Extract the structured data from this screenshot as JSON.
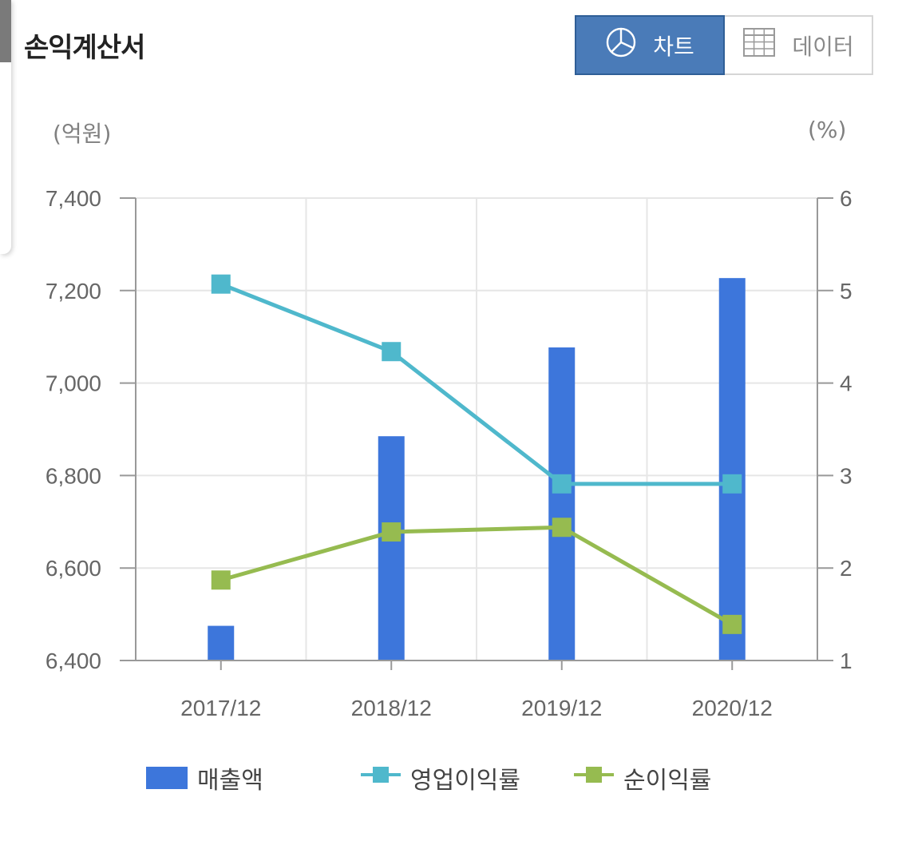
{
  "header": {
    "title": "손익계산서"
  },
  "toggle": {
    "chart_label": "차트",
    "data_label": "데이터",
    "chart_icon": "pie-chart-icon",
    "data_icon": "table-grid-icon",
    "active": "chart",
    "active_color": "#4a7bb8"
  },
  "units": {
    "left": "(억원)",
    "right": "(%)"
  },
  "colors": {
    "bar": "#3d76db",
    "operating_margin": "#4fb8cc",
    "net_margin": "#96bb50",
    "grid": "#e6e6e6",
    "axis": "#999999",
    "tick_text": "#666666"
  },
  "chart_data": {
    "type": "bar",
    "categories": [
      "2017/12",
      "2018/12",
      "2019/12",
      "2020/12"
    ],
    "series": [
      {
        "name": "매출액",
        "type": "bar",
        "axis": "left",
        "values": [
          6475,
          6885,
          7077,
          7227
        ]
      },
      {
        "name": "영업이익률",
        "type": "line",
        "axis": "right",
        "values": [
          5.07,
          4.34,
          2.91,
          2.91
        ]
      },
      {
        "name": "순이익률",
        "type": "line",
        "axis": "right",
        "values": [
          1.87,
          2.39,
          2.44,
          1.39
        ]
      }
    ],
    "y_left": {
      "ylim": [
        6400,
        7400
      ],
      "ticks": [
        "6,400",
        "6,600",
        "6,800",
        "7,000",
        "7,200",
        "7,400"
      ]
    },
    "y_right": {
      "ylim": [
        1,
        6
      ],
      "ticks": [
        "1",
        "2",
        "3",
        "4",
        "5",
        "6"
      ]
    },
    "grid": true,
    "legend_position": "bottom"
  }
}
